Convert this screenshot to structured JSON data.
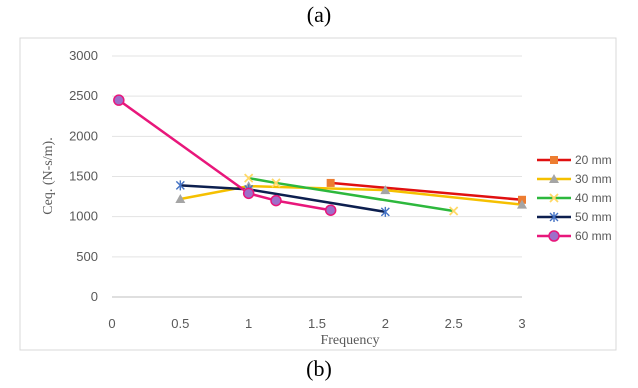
{
  "captions": {
    "top": "(a)",
    "bottom": "(b)"
  },
  "chart_data": {
    "type": "line",
    "title": "",
    "xlabel": "Frequency",
    "ylabel": "Ceq. (N-s/m).",
    "xlim": [
      0,
      3
    ],
    "ylim": [
      0,
      3000
    ],
    "xticks": [
      "0",
      "0.5",
      "1",
      "1.5",
      "2",
      "2.5",
      "3"
    ],
    "yticks": [
      "0",
      "500",
      "1000",
      "1500",
      "2000",
      "2500",
      "3000"
    ],
    "grid": "horizontal",
    "legend_position": "right",
    "series": [
      {
        "name": "20 mm",
        "color": "#e01010",
        "marker": "square",
        "marker_color": "#ed7d31",
        "x": [
          1.6,
          3.0
        ],
        "y": [
          1420,
          1210
        ]
      },
      {
        "name": "30 mm",
        "color": "#f5c000",
        "marker": "triangle",
        "marker_color": "#a5a5a5",
        "x": [
          0.5,
          1.0,
          2.0,
          3.0
        ],
        "y": [
          1220,
          1380,
          1330,
          1150
        ]
      },
      {
        "name": "40 mm",
        "color": "#2db83d",
        "marker": "x",
        "marker_color": "#ffd966",
        "x": [
          1.0,
          1.2,
          2.5
        ],
        "y": [
          1480,
          1420,
          1070
        ]
      },
      {
        "name": "50 mm",
        "color": "#0d1f4f",
        "marker": "star",
        "marker_color": "#4472c4",
        "x": [
          0.5,
          1.0,
          2.0
        ],
        "y": [
          1390,
          1340,
          1060
        ]
      },
      {
        "name": "60 mm",
        "color": "#e8177b",
        "marker": "circle",
        "marker_color": "#9e6ec9",
        "x": [
          0.05,
          1.0,
          1.2,
          1.6
        ],
        "y": [
          2450,
          1290,
          1200,
          1080
        ]
      }
    ]
  }
}
